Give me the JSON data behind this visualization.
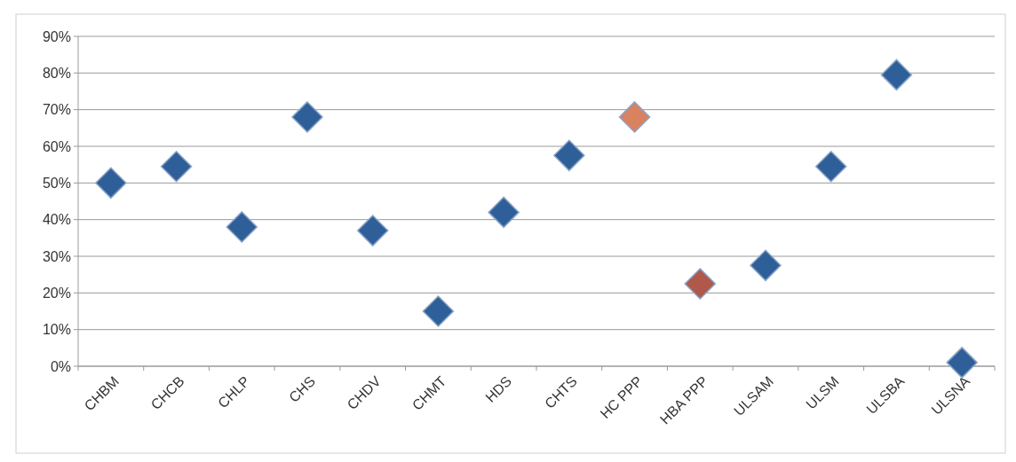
{
  "chart_data": {
    "type": "scatter",
    "categories": [
      "CHBM",
      "CHCB",
      "CHLP",
      "CHS",
      "CHDV",
      "CHMT",
      "HDS",
      "CHTS",
      "HC PPP",
      "HBA PPP",
      "ULSAM",
      "ULSM",
      "ULSBA",
      "ULSNA"
    ],
    "values": [
      50,
      54.5,
      38,
      68,
      37,
      15,
      42,
      57.5,
      68,
      22.5,
      27.5,
      54.5,
      79.5,
      1
    ],
    "colors": [
      "#2f5f98",
      "#2f5f98",
      "#2f5f98",
      "#2f5f98",
      "#2f5f98",
      "#2f5f98",
      "#2f5f98",
      "#2f5f98",
      "#d9825f",
      "#b0584a",
      "#2f5f98",
      "#2f5f98",
      "#2f5f98",
      "#2f5f98"
    ],
    "ylim": [
      0,
      90
    ],
    "yticks": [
      {
        "value": 0,
        "label": "0%"
      },
      {
        "value": 10,
        "label": "10%"
      },
      {
        "value": 20,
        "label": "20%"
      },
      {
        "value": 30,
        "label": "30%"
      },
      {
        "value": 40,
        "label": "40%"
      },
      {
        "value": 50,
        "label": "50%"
      },
      {
        "value": 60,
        "label": "60%"
      },
      {
        "value": 70,
        "label": "70%"
      },
      {
        "value": 80,
        "label": "80%"
      },
      {
        "value": 90,
        "label": "90%"
      }
    ],
    "grid": "y",
    "marker": "diamond"
  }
}
